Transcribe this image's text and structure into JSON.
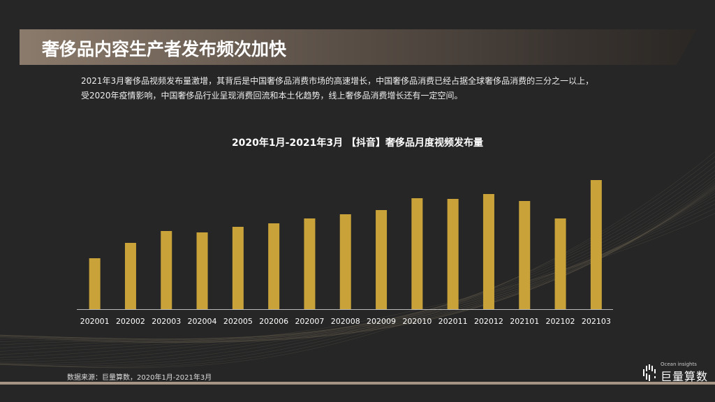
{
  "header": {
    "title": "奢侈品内容生产者发布频次加快"
  },
  "description": [
    "2021年3月奢侈品视频发布量激增，其背后是中国奢侈品消费市场的高速增长，中国奢侈品消费已经占据全球奢侈品消费的三分之一以上，",
    "受2020年疫情影响，中国奢侈品行业呈现消费回流和本土化趋势，线上奢侈品消费增长还有一定空间。"
  ],
  "chart_data": {
    "type": "bar",
    "title": "2020年1月-2021年3月 【抖音】奢侈品月度视频发布量",
    "categories": [
      "202001",
      "202002",
      "202003",
      "202004",
      "202005",
      "202006",
      "202007",
      "202008",
      "202009",
      "202010",
      "202011",
      "202012",
      "202101",
      "202102",
      "202103"
    ],
    "values": [
      73,
      95,
      112,
      110,
      118,
      123,
      130,
      136,
      142,
      159,
      158,
      165,
      155,
      130,
      185
    ],
    "xlabel": "",
    "ylabel": "",
    "grid": false,
    "bar_color": "#c9a33a"
  },
  "footer": {
    "source": "数据来源：巨量算数，2020年1月-2021年3月",
    "logo_en": "Ocean insights",
    "logo_cn": "巨量算数"
  }
}
